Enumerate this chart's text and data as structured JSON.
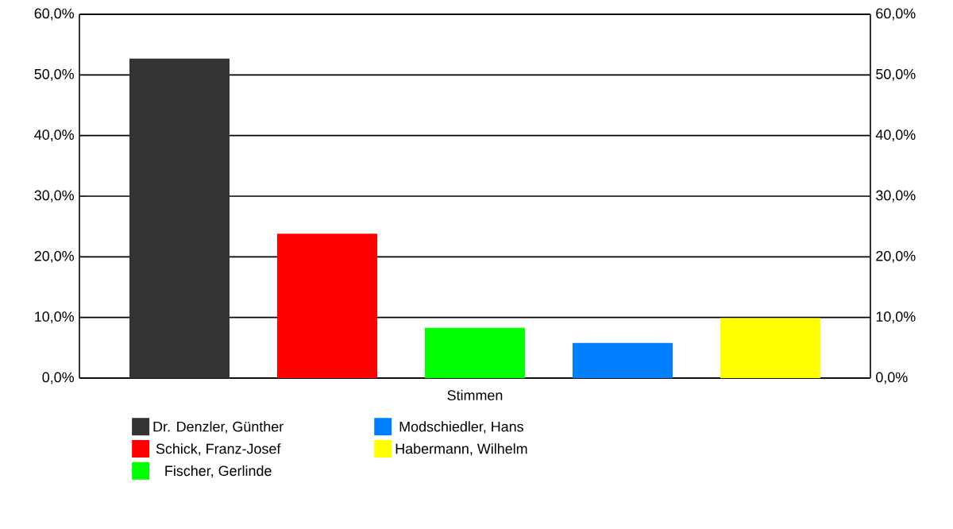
{
  "chart_data": {
    "type": "bar",
    "categories": [
      "Stimmen"
    ],
    "series": [
      {
        "name": "Dr. Denzler, Günther",
        "color": "#333333",
        "values": [
          52.7
        ]
      },
      {
        "name": "Schick, Franz-Josef",
        "color": "#ff0000",
        "values": [
          23.8
        ]
      },
      {
        "name": "Fischer, Gerlinde",
        "color": "#00ff00",
        "values": [
          8.3
        ]
      },
      {
        "name": "Modschiedler, Hans",
        "color": "#0080ff",
        "values": [
          5.8
        ]
      },
      {
        "name": "Habermann, Wilhelm",
        "color": "#ffff00",
        "values": [
          9.9
        ]
      }
    ],
    "ylim": [
      0,
      60
    ],
    "yticks": [
      {
        "value": 0,
        "label": "0,0%"
      },
      {
        "value": 10,
        "label": "10,0%"
      },
      {
        "value": 20,
        "label": "20,0%"
      },
      {
        "value": 30,
        "label": "30,0%"
      },
      {
        "value": 40,
        "label": "40,0%"
      },
      {
        "value": 50,
        "label": "50,0%"
      },
      {
        "value": 60,
        "label": "60,0%"
      }
    ],
    "grid": "y",
    "legend": "bottom"
  }
}
